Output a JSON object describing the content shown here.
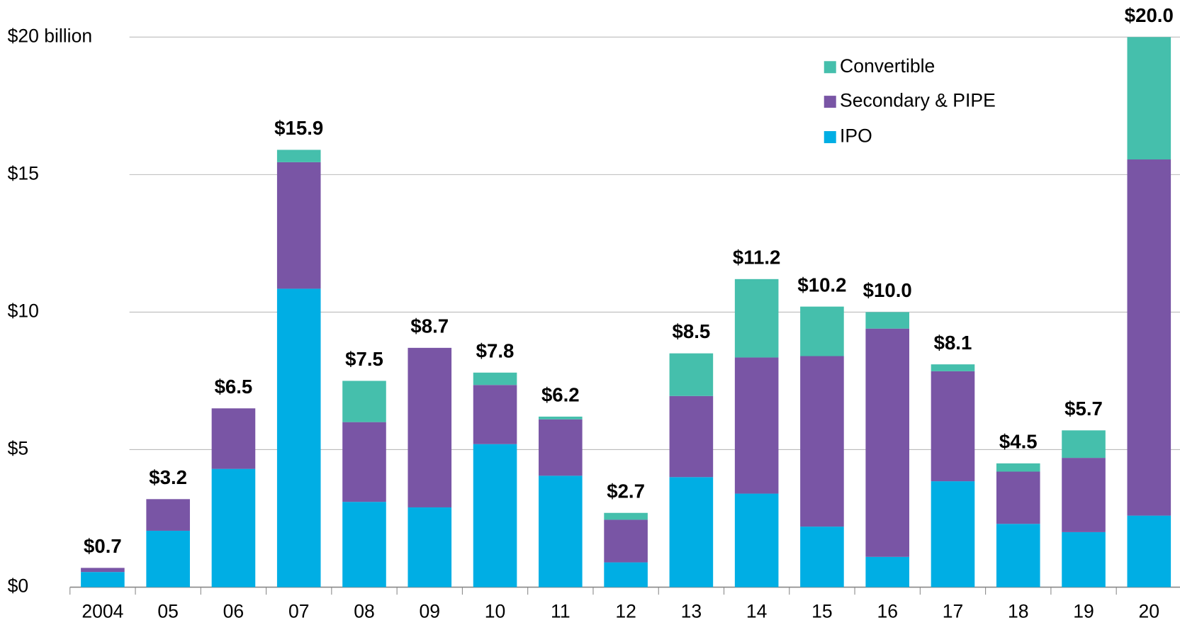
{
  "chart_data": {
    "type": "stacked-bar",
    "categories": [
      "2004",
      "05",
      "06",
      "07",
      "08",
      "09",
      "10",
      "11",
      "12",
      "13",
      "14",
      "15",
      "16",
      "17",
      "18",
      "19",
      "20"
    ],
    "series": [
      {
        "name": "IPO",
        "color": "#00aee4",
        "values": [
          0.55,
          2.05,
          4.3,
          10.85,
          3.1,
          2.9,
          5.2,
          4.05,
          0.9,
          4.0,
          3.4,
          2.2,
          1.1,
          3.85,
          2.3,
          2.0,
          2.6
        ]
      },
      {
        "name": "Secondary & PIPE",
        "color": "#7955a5",
        "values": [
          0.15,
          1.15,
          2.2,
          4.6,
          2.9,
          5.8,
          2.15,
          2.05,
          1.55,
          2.95,
          4.95,
          6.2,
          8.3,
          4.0,
          1.9,
          2.7,
          12.95
        ]
      },
      {
        "name": "Convertible",
        "color": "#45bfac",
        "values": [
          0,
          0,
          0,
          0.45,
          1.5,
          0,
          0.45,
          0.1,
          0.25,
          1.55,
          2.85,
          1.8,
          0.6,
          0.25,
          0.3,
          1.0,
          4.45
        ]
      }
    ],
    "totals": [
      0.7,
      3.2,
      6.5,
      15.9,
      7.5,
      8.7,
      7.8,
      6.2,
      2.7,
      8.5,
      11.2,
      10.2,
      10.0,
      8.1,
      4.5,
      5.7,
      20.0
    ],
    "total_labels": [
      "$0.7",
      "$3.2",
      "$6.5",
      "$15.9",
      "$7.5",
      "$8.7",
      "$7.8",
      "$6.2",
      "$2.7",
      "$8.5",
      "$11.2",
      "$10.2",
      "$10.0",
      "$8.1",
      "$4.5",
      "$5.7",
      "$20.0"
    ],
    "ylim": [
      0,
      20
    ],
    "yticks": [
      {
        "value": 0,
        "label": "$0"
      },
      {
        "value": 5,
        "label": "$5"
      },
      {
        "value": 10,
        "label": "$10"
      },
      {
        "value": 15,
        "label": "$15"
      },
      {
        "value": 20,
        "label": "$20 billion"
      }
    ],
    "grid": true,
    "legend": "upper right"
  }
}
